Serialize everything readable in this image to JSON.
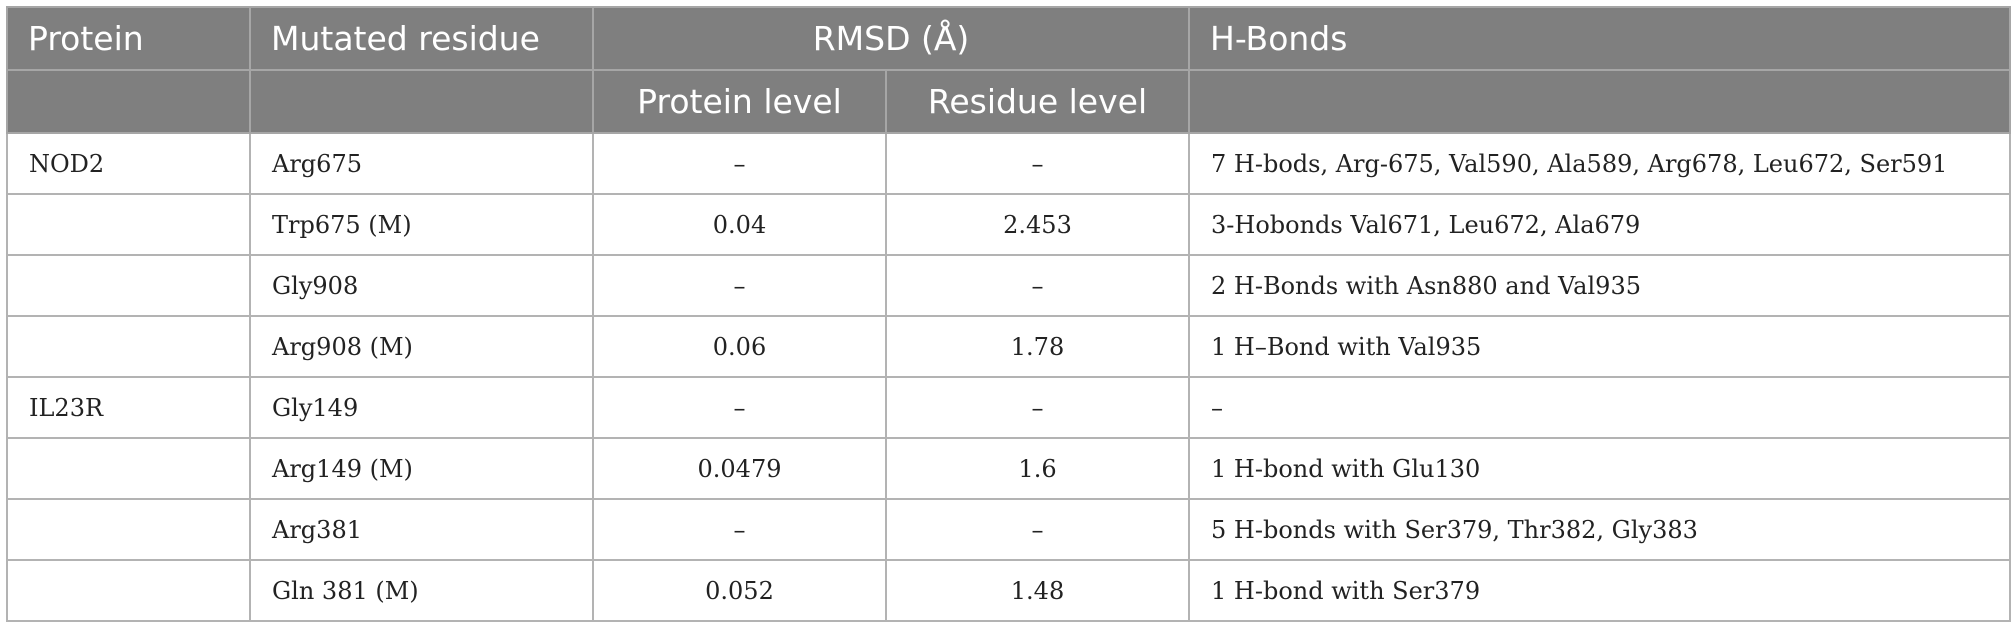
{
  "table": {
    "headers": {
      "protein": "Protein",
      "mutated_residue": "Mutated residue",
      "rmsd": "RMSD (Å)",
      "protein_level": "Protein level",
      "residue_level": "Residue level",
      "h_bonds": "H-Bonds"
    },
    "rows": [
      {
        "protein": "NOD2",
        "residue": "Arg675",
        "protein_level": "–",
        "residue_level": "–",
        "h_bonds": "7 H-bods, Arg-675, Val590, Ala589, Arg678, Leu672, Ser591"
      },
      {
        "protein": "",
        "residue": "Trp675 (M)",
        "protein_level": "0.04",
        "residue_level": "2.453",
        "h_bonds": "3-Hobonds Val671, Leu672, Ala679"
      },
      {
        "protein": "",
        "residue": "Gly908",
        "protein_level": "–",
        "residue_level": "–",
        "h_bonds": "2 H-Bonds with Asn880 and Val935"
      },
      {
        "protein": "",
        "residue": "Arg908 (M)",
        "protein_level": "0.06",
        "residue_level": "1.78",
        "h_bonds": "1 H–Bond with Val935"
      },
      {
        "protein": "IL23R",
        "residue": "Gly149",
        "protein_level": "–",
        "residue_level": "–",
        "h_bonds": "–"
      },
      {
        "protein": "",
        "residue": "Arg149 (M)",
        "protein_level": "0.0479",
        "residue_level": "1.6",
        "h_bonds": "1 H-bond with Glu130"
      },
      {
        "protein": "",
        "residue": "Arg381",
        "protein_level": "–",
        "residue_level": "–",
        "h_bonds": "5 H-bonds with Ser379, Thr382, Gly383"
      },
      {
        "protein": "",
        "residue": "Gln 381 (M)",
        "protein_level": "0.052",
        "residue_level": "1.48",
        "h_bonds": "1 H-bond with Ser379"
      }
    ]
  }
}
